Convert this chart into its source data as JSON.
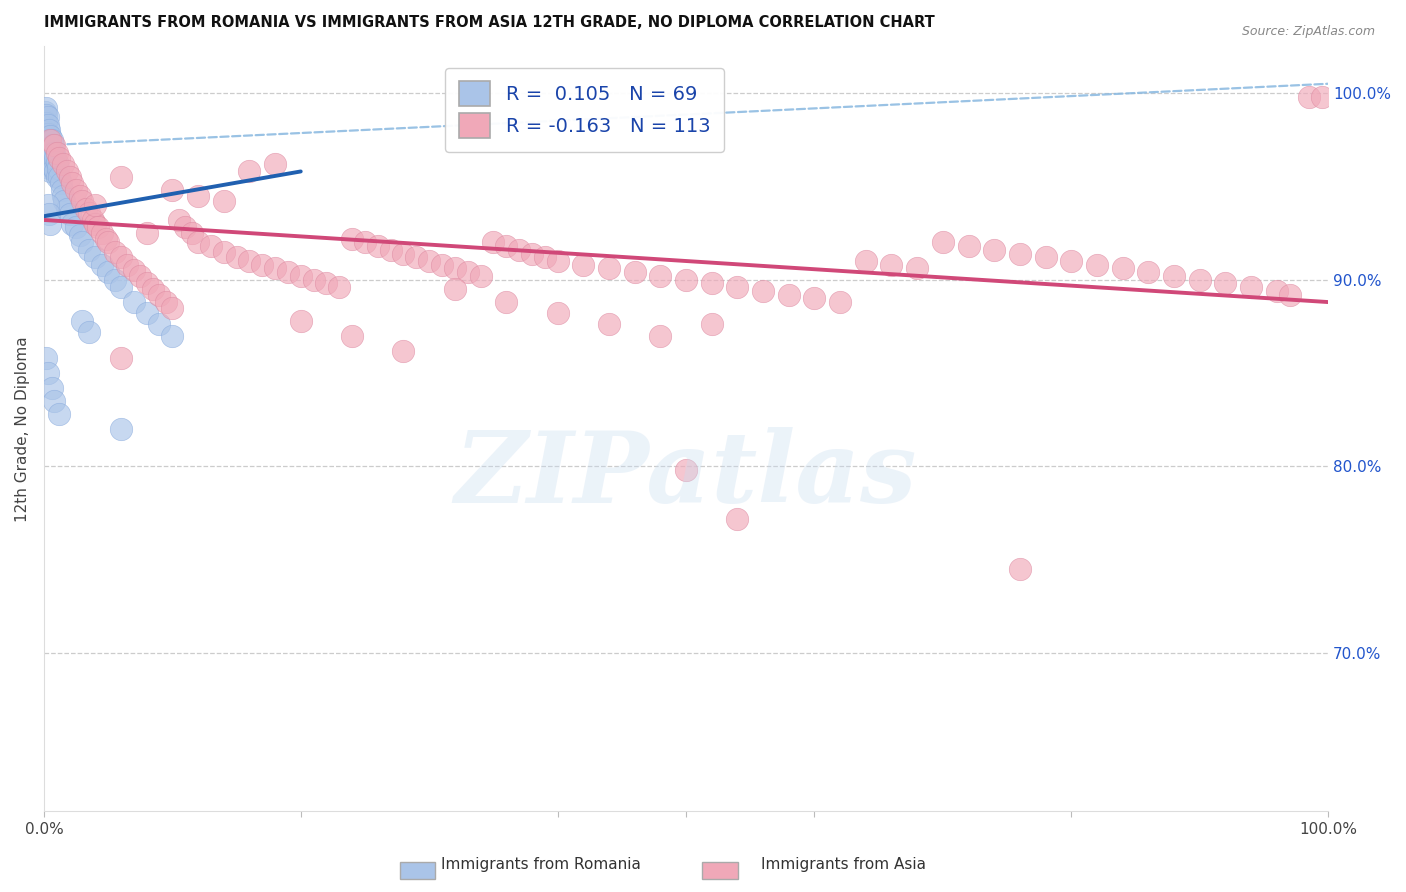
{
  "title": "IMMIGRANTS FROM ROMANIA VS IMMIGRANTS FROM ASIA 12TH GRADE, NO DIPLOMA CORRELATION CHART",
  "source": "Source: ZipAtlas.com",
  "ylabel": "12th Grade, No Diploma",
  "watermark": "ZIPatlas",
  "romania_color": "#aac4e8",
  "asia_color": "#f0a8b8",
  "romania_line_color": "#2060b0",
  "asia_line_color": "#d04878",
  "dashed_line_color": "#88b8e0",
  "romania_scatter_x": [
    0.001,
    0.001,
    0.001,
    0.001,
    0.001,
    0.002,
    0.002,
    0.002,
    0.002,
    0.002,
    0.002,
    0.003,
    0.003,
    0.003,
    0.003,
    0.003,
    0.003,
    0.004,
    0.004,
    0.004,
    0.004,
    0.005,
    0.005,
    0.005,
    0.005,
    0.006,
    0.006,
    0.006,
    0.007,
    0.007,
    0.008,
    0.008,
    0.009,
    0.009,
    0.01,
    0.01,
    0.011,
    0.012,
    0.013,
    0.014,
    0.015,
    0.016,
    0.018,
    0.02,
    0.022,
    0.025,
    0.028,
    0.03,
    0.035,
    0.04,
    0.045,
    0.05,
    0.055,
    0.06,
    0.07,
    0.08,
    0.09,
    0.1,
    0.003,
    0.004,
    0.005,
    0.03,
    0.035,
    0.002,
    0.003,
    0.006,
    0.008,
    0.012,
    0.06
  ],
  "romania_scatter_y": [
    0.99,
    0.985,
    0.982,
    0.978,
    0.975,
    0.992,
    0.988,
    0.984,
    0.979,
    0.974,
    0.97,
    0.987,
    0.983,
    0.978,
    0.972,
    0.968,
    0.962,
    0.98,
    0.975,
    0.968,
    0.96,
    0.977,
    0.971,
    0.964,
    0.958,
    0.975,
    0.968,
    0.961,
    0.972,
    0.965,
    0.968,
    0.96,
    0.965,
    0.958,
    0.963,
    0.955,
    0.96,
    0.955,
    0.952,
    0.948,
    0.945,
    0.942,
    0.938,
    0.935,
    0.93,
    0.928,
    0.924,
    0.92,
    0.916,
    0.912,
    0.908,
    0.904,
    0.9,
    0.896,
    0.888,
    0.882,
    0.876,
    0.87,
    0.94,
    0.935,
    0.93,
    0.878,
    0.872,
    0.858,
    0.85,
    0.842,
    0.835,
    0.828,
    0.82
  ],
  "asia_scatter_x": [
    0.005,
    0.008,
    0.01,
    0.012,
    0.015,
    0.018,
    0.02,
    0.022,
    0.025,
    0.028,
    0.03,
    0.033,
    0.035,
    0.038,
    0.04,
    0.042,
    0.045,
    0.048,
    0.05,
    0.055,
    0.06,
    0.065,
    0.07,
    0.075,
    0.08,
    0.085,
    0.09,
    0.095,
    0.1,
    0.105,
    0.11,
    0.115,
    0.12,
    0.13,
    0.14,
    0.15,
    0.16,
    0.17,
    0.18,
    0.19,
    0.2,
    0.21,
    0.22,
    0.23,
    0.24,
    0.25,
    0.26,
    0.27,
    0.28,
    0.29,
    0.3,
    0.31,
    0.32,
    0.33,
    0.34,
    0.35,
    0.36,
    0.37,
    0.38,
    0.39,
    0.4,
    0.42,
    0.44,
    0.46,
    0.48,
    0.5,
    0.52,
    0.54,
    0.56,
    0.58,
    0.6,
    0.62,
    0.64,
    0.66,
    0.68,
    0.7,
    0.72,
    0.74,
    0.76,
    0.78,
    0.8,
    0.82,
    0.84,
    0.86,
    0.88,
    0.9,
    0.92,
    0.94,
    0.96,
    0.97,
    0.985,
    0.995,
    0.04,
    0.06,
    0.08,
    0.1,
    0.12,
    0.14,
    0.16,
    0.18,
    0.2,
    0.24,
    0.28,
    0.32,
    0.36,
    0.4,
    0.44,
    0.48,
    0.52,
    0.06,
    0.5,
    0.54,
    0.76
  ],
  "asia_scatter_y": [
    0.975,
    0.972,
    0.968,
    0.965,
    0.962,
    0.958,
    0.955,
    0.952,
    0.948,
    0.945,
    0.942,
    0.938,
    0.936,
    0.932,
    0.93,
    0.928,
    0.925,
    0.922,
    0.92,
    0.915,
    0.912,
    0.908,
    0.905,
    0.902,
    0.898,
    0.895,
    0.892,
    0.888,
    0.885,
    0.932,
    0.928,
    0.925,
    0.92,
    0.918,
    0.915,
    0.912,
    0.91,
    0.908,
    0.906,
    0.904,
    0.902,
    0.9,
    0.898,
    0.896,
    0.922,
    0.92,
    0.918,
    0.916,
    0.914,
    0.912,
    0.91,
    0.908,
    0.906,
    0.904,
    0.902,
    0.92,
    0.918,
    0.916,
    0.914,
    0.912,
    0.91,
    0.908,
    0.906,
    0.904,
    0.902,
    0.9,
    0.898,
    0.896,
    0.894,
    0.892,
    0.89,
    0.888,
    0.91,
    0.908,
    0.906,
    0.92,
    0.918,
    0.916,
    0.914,
    0.912,
    0.91,
    0.908,
    0.906,
    0.904,
    0.902,
    0.9,
    0.898,
    0.896,
    0.894,
    0.892,
    0.998,
    0.998,
    0.94,
    0.955,
    0.925,
    0.948,
    0.945,
    0.942,
    0.958,
    0.962,
    0.878,
    0.87,
    0.862,
    0.895,
    0.888,
    0.882,
    0.876,
    0.87,
    0.876,
    0.858,
    0.798,
    0.772,
    0.745
  ],
  "xlim": [
    0.0,
    1.0
  ],
  "ylim": [
    0.615,
    1.025
  ],
  "romania_trend_x": [
    0.0,
    0.2
  ],
  "romania_trend_y": [
    0.934,
    0.958
  ],
  "asia_trend_x": [
    0.0,
    1.0
  ],
  "asia_trend_y": [
    0.932,
    0.888
  ],
  "dashed_trend_x": [
    0.0,
    1.0
  ],
  "dashed_trend_y": [
    0.972,
    1.005
  ],
  "ytick_values": [
    1.0,
    0.9,
    0.8,
    0.7
  ],
  "ytick_labels": [
    "100.0%",
    "90.0%",
    "80.0%",
    "70.0%"
  ],
  "bottom_label1": "Immigrants from Romania",
  "bottom_label2": "Immigrants from Asia",
  "legend_text1": "R =  0.105   N = 69",
  "legend_text2": "R = -0.163   N = 113"
}
